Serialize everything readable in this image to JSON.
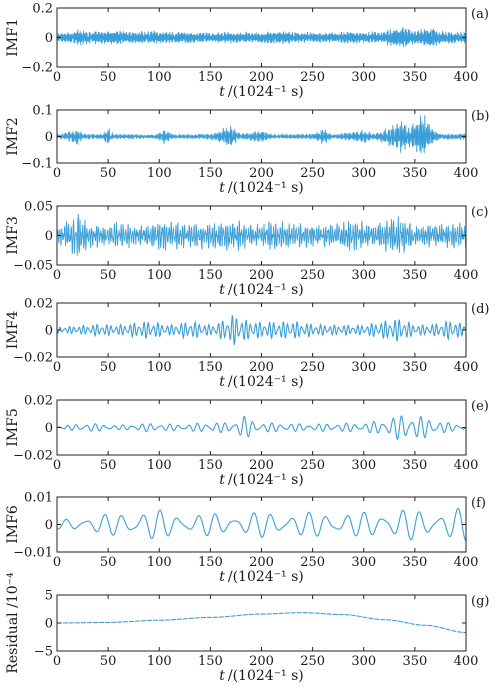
{
  "chart_data": [
    {
      "type": "line",
      "panel_label": "(a)",
      "ylabel": "IMF1",
      "xlabel_var": "t",
      "xlabel_unit": "/(1024⁻¹ s)",
      "xlim": [
        0,
        400
      ],
      "ylim": [
        -0.2,
        0.2
      ],
      "xticks": [
        "0",
        "50",
        "100",
        "150",
        "200",
        "250",
        "300",
        "350",
        "400"
      ],
      "yticks": [
        "0.2",
        "0",
        "−0.2"
      ],
      "ytick_values": [
        0.2,
        0,
        -0.2
      ],
      "amplitude": 0.06,
      "frequency_cycles_per_unit": 0.9,
      "envelope": [
        [
          0,
          0.35
        ],
        [
          15,
          0.45
        ],
        [
          20,
          0.7
        ],
        [
          30,
          0.5
        ],
        [
          50,
          0.55
        ],
        [
          60,
          0.6
        ],
        [
          70,
          0.45
        ],
        [
          90,
          0.55
        ],
        [
          110,
          0.45
        ],
        [
          130,
          0.5
        ],
        [
          150,
          0.4
        ],
        [
          170,
          0.45
        ],
        [
          200,
          0.45
        ],
        [
          220,
          0.55
        ],
        [
          250,
          0.4
        ],
        [
          270,
          0.45
        ],
        [
          290,
          0.5
        ],
        [
          300,
          0.45
        ],
        [
          320,
          0.5
        ],
        [
          330,
          0.8
        ],
        [
          340,
          0.9
        ],
        [
          350,
          0.5
        ],
        [
          365,
          0.9
        ],
        [
          375,
          0.5
        ],
        [
          400,
          0.5
        ]
      ]
    },
    {
      "type": "line",
      "panel_label": "(b)",
      "ylabel": "IMF2",
      "xlabel_var": "t",
      "xlabel_unit": "/(1024⁻¹ s)",
      "xlim": [
        0,
        400
      ],
      "ylim": [
        -0.1,
        0.1
      ],
      "xticks": [
        "0",
        "50",
        "100",
        "150",
        "200",
        "250",
        "300",
        "350",
        "400"
      ],
      "yticks": [
        "0.1",
        "0",
        "−0.1"
      ],
      "ytick_values": [
        0.1,
        0,
        -0.1
      ],
      "amplitude": 0.05,
      "frequency_cycles_per_unit": 0.7,
      "envelope": [
        [
          0,
          0.1
        ],
        [
          15,
          0.3
        ],
        [
          20,
          0.5
        ],
        [
          25,
          0.15
        ],
        [
          45,
          0.15
        ],
        [
          50,
          0.6
        ],
        [
          55,
          0.15
        ],
        [
          95,
          0.1
        ],
        [
          105,
          0.4
        ],
        [
          115,
          0.1
        ],
        [
          150,
          0.15
        ],
        [
          160,
          0.4
        ],
        [
          170,
          0.6
        ],
        [
          180,
          0.15
        ],
        [
          200,
          0.35
        ],
        [
          210,
          0.1
        ],
        [
          250,
          0.15
        ],
        [
          260,
          0.45
        ],
        [
          270,
          0.1
        ],
        [
          300,
          0.4
        ],
        [
          310,
          0.15
        ],
        [
          325,
          0.55
        ],
        [
          335,
          0.9
        ],
        [
          345,
          0.6
        ],
        [
          358,
          1.3
        ],
        [
          365,
          0.6
        ],
        [
          375,
          0.15
        ],
        [
          400,
          0.2
        ]
      ]
    },
    {
      "type": "line",
      "panel_label": "(c)",
      "ylabel": "IMF3",
      "xlabel_var": "t",
      "xlabel_unit": "/(1024⁻¹ s)",
      "xlim": [
        0,
        400
      ],
      "ylim": [
        -0.05,
        0.05
      ],
      "xticks": [
        "0",
        "50",
        "100",
        "150",
        "200",
        "250",
        "300",
        "350",
        "400"
      ],
      "yticks": [
        "0.05",
        "0",
        "−0.05"
      ],
      "ytick_values": [
        0.05,
        0,
        -0.05
      ],
      "amplitude": 0.022,
      "frequency_cycles_per_unit": 0.45,
      "envelope": [
        [
          0,
          0.5
        ],
        [
          10,
          0.8
        ],
        [
          20,
          1.5
        ],
        [
          30,
          0.7
        ],
        [
          50,
          0.6
        ],
        [
          60,
          0.8
        ],
        [
          80,
          0.6
        ],
        [
          100,
          0.9
        ],
        [
          130,
          0.7
        ],
        [
          150,
          0.8
        ],
        [
          170,
          1.0
        ],
        [
          190,
          0.6
        ],
        [
          210,
          0.9
        ],
        [
          240,
          0.7
        ],
        [
          260,
          0.6
        ],
        [
          290,
          0.9
        ],
        [
          310,
          0.6
        ],
        [
          335,
          1.2
        ],
        [
          350,
          0.6
        ],
        [
          370,
          0.7
        ],
        [
          400,
          0.7
        ]
      ]
    },
    {
      "type": "line",
      "panel_label": "(d)",
      "ylabel": "IMF4",
      "xlabel_var": "t",
      "xlabel_unit": "/(1024⁻¹ s)",
      "xlim": [
        0,
        400
      ],
      "ylim": [
        -0.02,
        0.02
      ],
      "xticks": [
        "0",
        "50",
        "100",
        "150",
        "200",
        "250",
        "300",
        "350",
        "400"
      ],
      "yticks": [
        "0.02",
        "0",
        "−0.02"
      ],
      "ytick_values": [
        0.02,
        0,
        -0.02
      ],
      "amplitude": 0.007,
      "frequency_cycles_per_unit": 0.22,
      "envelope": [
        [
          0,
          0.3
        ],
        [
          20,
          0.4
        ],
        [
          40,
          0.6
        ],
        [
          60,
          0.5
        ],
        [
          90,
          0.9
        ],
        [
          110,
          0.5
        ],
        [
          130,
          0.9
        ],
        [
          150,
          0.5
        ],
        [
          165,
          1.1
        ],
        [
          172,
          1.6
        ],
        [
          185,
          1.0
        ],
        [
          200,
          0.8
        ],
        [
          230,
          0.9
        ],
        [
          250,
          0.6
        ],
        [
          270,
          0.5
        ],
        [
          300,
          0.5
        ],
        [
          335,
          1.2
        ],
        [
          350,
          0.5
        ],
        [
          370,
          0.6
        ],
        [
          385,
          1.0
        ],
        [
          400,
          0.5
        ]
      ]
    },
    {
      "type": "line",
      "panel_label": "(e)",
      "ylabel": "IMF5",
      "xlabel_var": "t",
      "xlabel_unit": "/(1024⁻¹ s)",
      "xlim": [
        0,
        400
      ],
      "ylim": [
        -0.02,
        0.02
      ],
      "xticks": [
        "0",
        "50",
        "100",
        "150",
        "200",
        "250",
        "300",
        "350",
        "400"
      ],
      "yticks": [
        "0.02",
        "0",
        "−0.02"
      ],
      "ytick_values": [
        0.02,
        0,
        -0.02
      ],
      "amplitude": 0.006,
      "frequency_cycles_per_unit": 0.11,
      "envelope": [
        [
          0,
          0.15
        ],
        [
          30,
          0.5
        ],
        [
          60,
          0.25
        ],
        [
          90,
          0.5
        ],
        [
          120,
          0.35
        ],
        [
          150,
          0.6
        ],
        [
          170,
          0.55
        ],
        [
          182,
          1.4
        ],
        [
          195,
          0.6
        ],
        [
          220,
          0.5
        ],
        [
          250,
          0.4
        ],
        [
          280,
          0.5
        ],
        [
          300,
          0.5
        ],
        [
          320,
          0.9
        ],
        [
          340,
          1.6
        ],
        [
          360,
          1.2
        ],
        [
          380,
          0.6
        ],
        [
          400,
          0.3
        ]
      ]
    },
    {
      "type": "line",
      "panel_label": "(f)",
      "ylabel": "IMF6",
      "xlabel_var": "t",
      "xlabel_unit": "/(1024⁻¹ s)",
      "xlim": [
        0,
        400
      ],
      "ylim": [
        -0.01,
        0.01
      ],
      "xticks": [
        "0",
        "50",
        "100",
        "150",
        "200",
        "250",
        "300",
        "350",
        "400"
      ],
      "yticks": [
        "0.01",
        "0",
        "−0.01"
      ],
      "ytick_values": [
        0.01,
        0,
        -0.01
      ],
      "amplitude": 0.005,
      "frequency_cycles_per_unit": 0.055,
      "envelope": [
        [
          0,
          0.3
        ],
        [
          30,
          0.6
        ],
        [
          60,
          0.8
        ],
        [
          90,
          1.1
        ],
        [
          110,
          0.9
        ],
        [
          130,
          0.7
        ],
        [
          150,
          0.8
        ],
        [
          170,
          0.7
        ],
        [
          200,
          0.9
        ],
        [
          230,
          0.8
        ],
        [
          260,
          0.9
        ],
        [
          290,
          0.8
        ],
        [
          320,
          1.0
        ],
        [
          340,
          1.1
        ],
        [
          370,
          0.9
        ],
        [
          400,
          1.2
        ]
      ]
    },
    {
      "type": "line",
      "panel_label": "(g)",
      "ylabel": "Residual /10⁻⁴",
      "xlabel_var": "t",
      "xlabel_unit": "/(1024⁻¹ s)",
      "xlim": [
        0,
        400
      ],
      "ylim": [
        -5,
        5
      ],
      "xticks": [
        "0",
        "50",
        "100",
        "150",
        "200",
        "250",
        "300",
        "350",
        "400"
      ],
      "yticks": [
        "5",
        "0",
        "−5"
      ],
      "ytick_values": [
        5,
        0,
        -5
      ],
      "points": [
        [
          0,
          0
        ],
        [
          50,
          0.1
        ],
        [
          100,
          0.5
        ],
        [
          150,
          1.0
        ],
        [
          200,
          1.6
        ],
        [
          240,
          1.85
        ],
        [
          280,
          1.5
        ],
        [
          320,
          0.6
        ],
        [
          360,
          -0.4
        ],
        [
          400,
          -1.7
        ]
      ]
    }
  ]
}
